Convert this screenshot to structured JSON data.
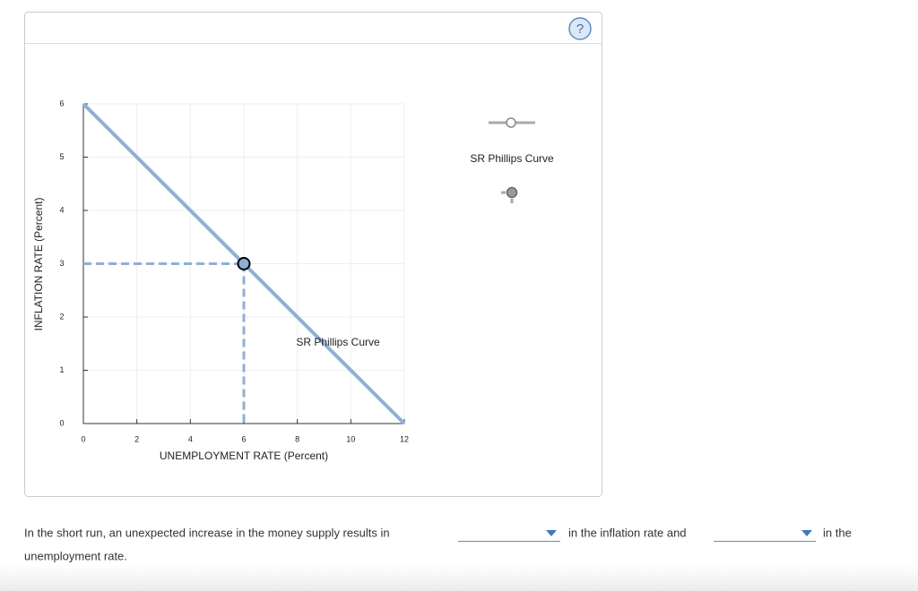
{
  "help_icon": "?",
  "chart_data": {
    "type": "line",
    "x_label": "UNEMPLOYMENT RATE (Percent)",
    "y_label": "INFLATION RATE (Percent)",
    "series": [
      {
        "name": "SR Phillips Curve",
        "color": "#8fb0d3",
        "x": [
          0,
          12
        ],
        "values": [
          6,
          0
        ]
      }
    ],
    "annotation": "SR Phillips Curve",
    "point": {
      "x": 6,
      "y": 3,
      "color": "#8fb0d3"
    },
    "xlim": [
      0,
      12
    ],
    "ylim": [
      0,
      6
    ],
    "xticks": [
      0,
      2,
      4,
      6,
      8,
      10,
      12
    ],
    "yticks": [
      0,
      1,
      2,
      3,
      4,
      5,
      6
    ],
    "grid": true
  },
  "question": {
    "part1": "In the short run, an unexpected increase in the money supply results in",
    "part2": "in the inflation rate and",
    "part3": "in the",
    "part4": "unemployment rate."
  }
}
